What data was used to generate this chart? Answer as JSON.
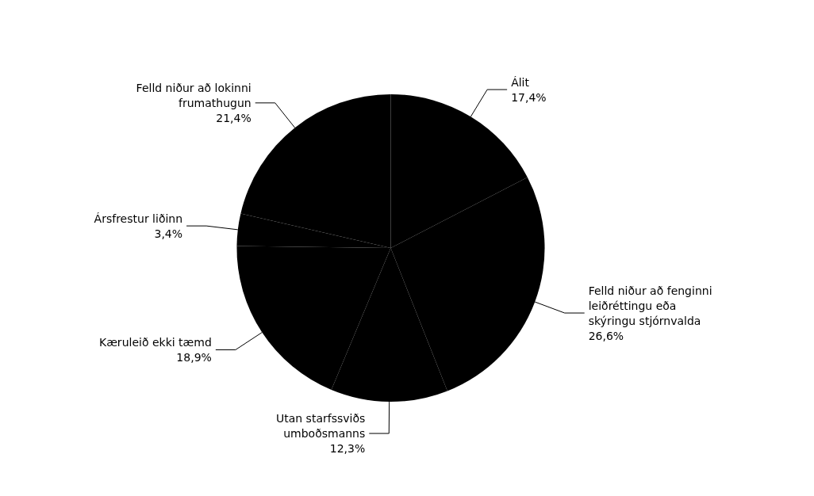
{
  "chart_data": {
    "type": "pie",
    "categories": [
      "Álit",
      "Felld niður að fenginni\nleiðréttingu eða\nskýringu stjórnvalda",
      "Utan starfssviðs\numboðsmanns",
      "Kæruleið ekki tæmd",
      "Ársfrestur liðinn",
      "Felld niður að lokinni\nfrumathugun"
    ],
    "values": [
      17.4,
      26.6,
      12.3,
      18.9,
      3.4,
      21.4
    ],
    "colors": [
      "#000000",
      "#000000",
      "#000000",
      "#000000",
      "#000000",
      "#000000"
    ],
    "value_labels": [
      "17,4%",
      "26,6%",
      "12,3%",
      "18,9%",
      "3,4%",
      "21,4%"
    ],
    "legend": false
  }
}
